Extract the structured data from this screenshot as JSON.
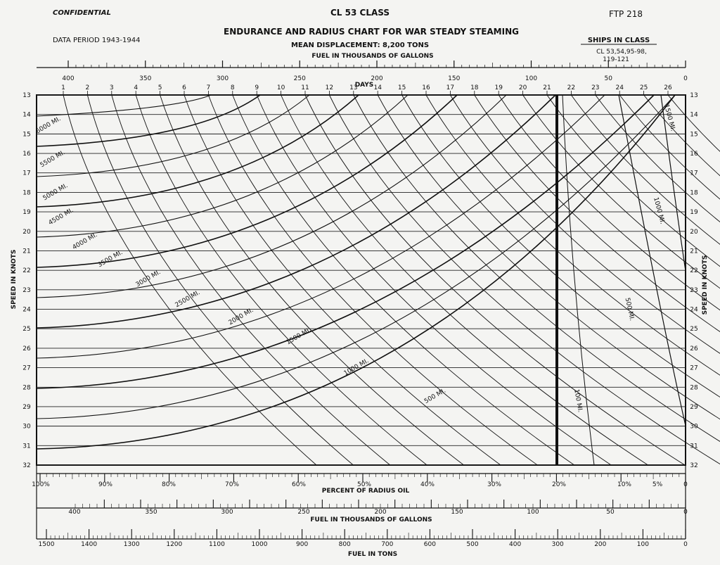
{
  "header": {
    "confidential": "CONFIDENTIAL",
    "class_title": "CL 53 CLASS",
    "ftp": "FTP 218",
    "data_period": "DATA PERIOD 1943-1944",
    "chart_title": "ENDURANCE AND RADIUS CHART FOR WAR STEADY STEAMING",
    "displacement": "MEAN DISPLACEMENT: 8,200 TONS",
    "ships_label": "SHIPS IN CLASS",
    "ships_line1": "CL 53,54,95-98,",
    "ships_line2": "119-121"
  },
  "chart_data": {
    "type": "line",
    "ylabel": "SPEED IN KNOTS",
    "ylim": [
      13,
      32
    ],
    "y_ticks": [
      13,
      14,
      15,
      16,
      17,
      18,
      19,
      20,
      21,
      22,
      23,
      24,
      25,
      26,
      27,
      28,
      29,
      30,
      31,
      32
    ],
    "top_scale": {
      "label": "FUEL IN THOUSANDS OF GALLONS",
      "ticks": [
        "400",
        "350",
        "300",
        "250",
        "200",
        "150",
        "100",
        "50",
        "0"
      ]
    },
    "days_scale": {
      "label": "DAYS",
      "ticks": [
        "1",
        "2",
        "3",
        "4",
        "5",
        "6",
        "7",
        "8",
        "9",
        "10",
        "11",
        "12",
        "13",
        "14",
        "15",
        "16",
        "17",
        "18",
        "19",
        "20",
        "21",
        "22",
        "23",
        "24",
        "25",
        "26"
      ]
    },
    "percent_scale": {
      "label": "PERCENT OF RADIUS OIL",
      "ticks": [
        "100%",
        "90%",
        "80%",
        "70%",
        "60%",
        "50%",
        "40%",
        "30%",
        "20%",
        "10%",
        "5%",
        "0"
      ]
    },
    "gallons_scale": {
      "label": "FUEL IN THOUSANDS OF GALLONS",
      "ticks": [
        "400",
        "350",
        "300",
        "250",
        "200",
        "150",
        "100",
        "50",
        "0"
      ]
    },
    "tons_scale": {
      "label": "FUEL IN TONS",
      "ticks": [
        "1500",
        "1400",
        "1300",
        "1200",
        "1100",
        "1000",
        "900",
        "800",
        "700",
        "600",
        "500",
        "400",
        "300",
        "200",
        "100",
        "0"
      ]
    },
    "radius_curves": [
      {
        "label": "6000 MI.",
        "start": 1.0
      },
      {
        "label": "5500 MI.",
        "start": 3.4
      },
      {
        "label": "5000 MI.",
        "start": 5.9
      },
      {
        "label": "4500 MI.",
        "start": 8.4
      },
      {
        "label": "4000 MI.",
        "start": 10.9
      },
      {
        "label": "3500 MI.",
        "start": 13.3
      },
      {
        "label": "3000 MI.",
        "start": 15.8
      },
      {
        "label": "2500 MI.",
        "start": 18.3
      },
      {
        "label": "2000 MI.",
        "start": 20.8
      },
      {
        "label": "1500 MI.",
        "start": 23.3
      },
      {
        "label": "1000 MI.",
        "start": 25.7
      },
      {
        "label": "500 MI.",
        "start": 28.2
      },
      {
        "label": "100 MI.",
        "start": 30.4
      },
      {
        "label": "1000 MI.",
        "start": 19.3
      },
      {
        "label": "500 MI.",
        "start": 24.8
      },
      {
        "label": "1500 MI.",
        "start": 14.8
      }
    ],
    "day_curves_count": 26
  }
}
